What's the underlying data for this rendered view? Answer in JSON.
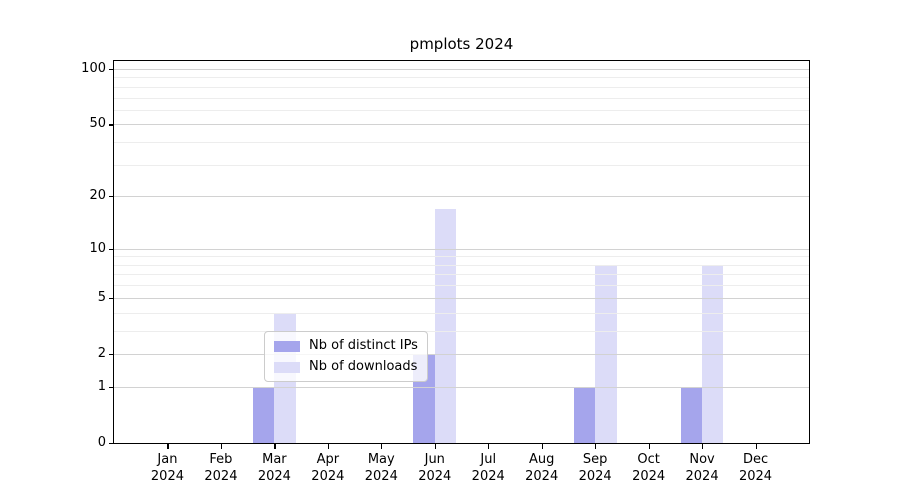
{
  "title": "pmplots 2024",
  "chart_data": {
    "type": "bar",
    "title": "pmplots 2024",
    "categories": [
      "Jan",
      "Feb",
      "Mar",
      "Apr",
      "May",
      "Jun",
      "Jul",
      "Aug",
      "Sep",
      "Oct",
      "Nov",
      "Dec"
    ],
    "x_year_label": "2024",
    "series": [
      {
        "name": "Nb of distinct IPs",
        "color": "#a5a5ec",
        "values": [
          0,
          0,
          1,
          0,
          0,
          2,
          0,
          0,
          1,
          0,
          1,
          0
        ]
      },
      {
        "name": "Nb of downloads",
        "color": "#dcdcf8",
        "values": [
          0,
          0,
          4,
          0,
          0,
          17,
          0,
          0,
          8,
          0,
          8,
          0
        ]
      }
    ],
    "y_axis": {
      "scale": "log10(1+v)",
      "ylim": [
        0,
        113
      ],
      "major_ticks": [
        0,
        1,
        2,
        5,
        10,
        20,
        50,
        100
      ],
      "minor_ticks": [
        3,
        4,
        6,
        7,
        8,
        9,
        30,
        40,
        60,
        70,
        80,
        90
      ]
    },
    "xlabel": "",
    "ylabel": "",
    "grid": {
      "on": true,
      "major_color": "#d2d2d2",
      "minor_color": "#ededed"
    },
    "legend": {
      "position": "lower center",
      "entries": [
        "Nb of distinct IPs",
        "Nb of downloads"
      ]
    },
    "colors": {
      "spine": "#000000",
      "background": "#ffffff"
    }
  }
}
